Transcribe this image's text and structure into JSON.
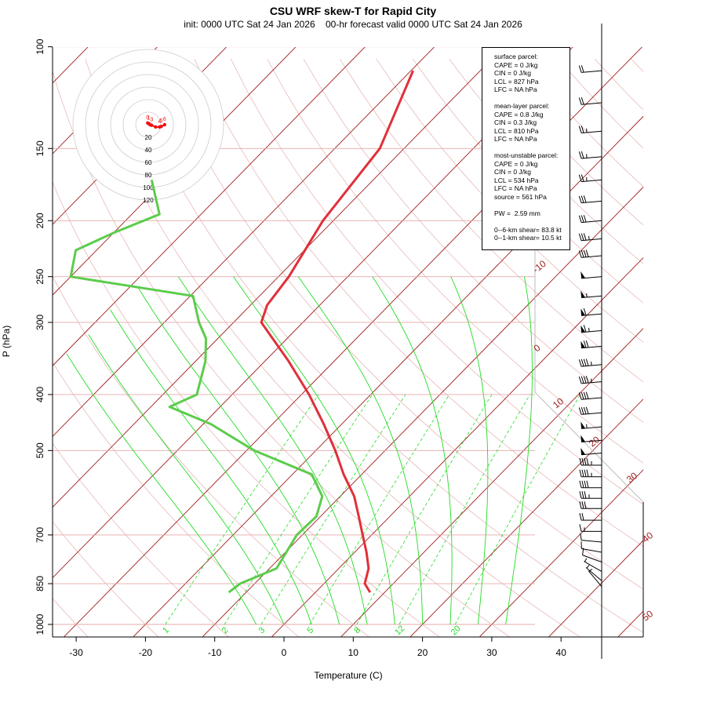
{
  "chart_data": {
    "type": "skew-t",
    "title": "CSU WRF skew-T for Rapid City",
    "subtitle": "init: 0000 UTC Sat 24 Jan 2026    00-hr forecast valid 0000 UTC Sat 24 Jan 2026",
    "xlabel": "Temperature (C)",
    "ylabel": "P (hPa)",
    "x_ticks": [
      -30,
      -20,
      -10,
      0,
      10,
      20,
      30,
      40
    ],
    "y_ticks": [
      100,
      150,
      200,
      250,
      300,
      400,
      500,
      700,
      850,
      1000
    ],
    "xlim": [
      -33,
      45
    ],
    "ylim": [
      1000,
      100
    ],
    "isotherm_labels": [
      "-10",
      "0",
      "10",
      "20",
      "30",
      "40",
      "50"
    ],
    "mixing_ratio_labels": [
      "1",
      "2",
      "3",
      "5",
      "8",
      "12",
      "20"
    ],
    "colors": {
      "temperature": "#e0303a",
      "dewpoint": "#5ccc4c",
      "isotherm": "#a01c1c",
      "dry_adiabat": "#e8b8b8",
      "moist_adiabat": "#22dd22",
      "mixing_ratio": "#22dd22",
      "hodograph": "#ee1111"
    },
    "series": [
      {
        "name": "temperature",
        "points": [
          {
            "p": 880,
            "t": 7.9
          },
          {
            "p": 850,
            "t": 5.9
          },
          {
            "p": 800,
            "t": 4.3
          },
          {
            "p": 750,
            "t": 1.7
          },
          {
            "p": 700,
            "t": -1.3
          },
          {
            "p": 650,
            "t": -4.5
          },
          {
            "p": 600,
            "t": -8.0
          },
          {
            "p": 550,
            "t": -12.6
          },
          {
            "p": 500,
            "t": -17.2
          },
          {
            "p": 450,
            "t": -22.6
          },
          {
            "p": 400,
            "t": -28.9
          },
          {
            "p": 350,
            "t": -36.6
          },
          {
            "p": 300,
            "t": -46.0
          },
          {
            "p": 280,
            "t": -47.6
          },
          {
            "p": 250,
            "t": -48.5
          },
          {
            "p": 200,
            "t": -51.5
          },
          {
            "p": 150,
            "t": -53.5
          },
          {
            "p": 110,
            "t": -59.7
          }
        ]
      },
      {
        "name": "dewpoint",
        "points": [
          {
            "p": 880,
            "t": -12.5
          },
          {
            "p": 850,
            "t": -12.1
          },
          {
            "p": 800,
            "t": -9.0
          },
          {
            "p": 700,
            "t": -10.8
          },
          {
            "p": 650,
            "t": -10.6
          },
          {
            "p": 600,
            "t": -12.6
          },
          {
            "p": 550,
            "t": -17.2
          },
          {
            "p": 500,
            "t": -28.9
          },
          {
            "p": 450,
            "t": -38.9
          },
          {
            "p": 420,
            "t": -47.3
          },
          {
            "p": 400,
            "t": -45.1
          },
          {
            "p": 350,
            "t": -48.6
          },
          {
            "p": 320,
            "t": -51.7
          },
          {
            "p": 300,
            "t": -55.0
          },
          {
            "p": 270,
            "t": -59.6
          },
          {
            "p": 250,
            "t": -80.0
          },
          {
            "p": 225,
            "t": -83.0
          },
          {
            "p": 210,
            "t": -80.0
          },
          {
            "p": 195,
            "t": -76.0
          },
          {
            "p": 170,
            "t": -82.0
          }
        ]
      }
    ],
    "hodograph": {
      "rings": [
        "20",
        "40",
        "60",
        "80",
        "100",
        "120"
      ],
      "point_labels": [
        "0",
        "1",
        "3",
        "4",
        "5",
        "6"
      ],
      "points": [
        {
          "u": -1,
          "v": 3
        },
        {
          "u": 1,
          "v": 2
        },
        {
          "u": 3,
          "v": 0
        },
        {
          "u": 6,
          "v": -1
        },
        {
          "u": 13,
          "v": -4
        },
        {
          "u": 20,
          "v": -4
        },
        {
          "u": 23,
          "v": -3
        },
        {
          "u": 29,
          "v": 0
        }
      ]
    },
    "info_box": [
      "surface parcel:",
      "CAPE = 0 J/kg",
      "CIN = 0 J/kg",
      "LCL = 827 hPa",
      "LFC = NA hPa",
      "",
      "mean-layer parcel:",
      "CAPE = 0.8 J/kg",
      "CIN = 0.3 J/kg",
      "LCL = 810 hPa",
      "LFC = NA hPa",
      "",
      "most-unstable parcel:",
      "CAPE = 0 J/kg",
      "CIN = 0 J/kg",
      "LCL = 534 hPa",
      "LFC = NA hPa",
      "source = 561 hPa",
      "",
      "PW =  2.59 mm",
      "",
      "0--6-km shear= 83.8 kt",
      "0--1-km shear= 10.5 kt"
    ],
    "wind_barbs": [
      {
        "p": 110,
        "kt": 20,
        "dir": 265
      },
      {
        "p": 125,
        "kt": 20,
        "dir": 265
      },
      {
        "p": 140,
        "kt": 25,
        "dir": 265
      },
      {
        "p": 155,
        "kt": 25,
        "dir": 265
      },
      {
        "p": 170,
        "kt": 25,
        "dir": 265
      },
      {
        "p": 185,
        "kt": 30,
        "dir": 265
      },
      {
        "p": 200,
        "kt": 30,
        "dir": 265
      },
      {
        "p": 215,
        "kt": 35,
        "dir": 265
      },
      {
        "p": 230,
        "kt": 40,
        "dir": 265
      },
      {
        "p": 250,
        "kt": 50,
        "dir": 265
      },
      {
        "p": 270,
        "kt": 55,
        "dir": 265
      },
      {
        "p": 290,
        "kt": 60,
        "dir": 265
      },
      {
        "p": 310,
        "kt": 65,
        "dir": 265
      },
      {
        "p": 330,
        "kt": 70,
        "dir": 265
      },
      {
        "p": 355,
        "kt": 45,
        "dir": 265
      },
      {
        "p": 380,
        "kt": 45,
        "dir": 265
      },
      {
        "p": 405,
        "kt": 40,
        "dir": 265
      },
      {
        "p": 430,
        "kt": 40,
        "dir": 265
      },
      {
        "p": 455,
        "kt": 55,
        "dir": 265
      },
      {
        "p": 480,
        "kt": 50,
        "dir": 265
      },
      {
        "p": 505,
        "kt": 50,
        "dir": 265
      },
      {
        "p": 530,
        "kt": 45,
        "dir": 270
      },
      {
        "p": 555,
        "kt": 45,
        "dir": 270
      },
      {
        "p": 580,
        "kt": 40,
        "dir": 270
      },
      {
        "p": 605,
        "kt": 35,
        "dir": 270
      },
      {
        "p": 630,
        "kt": 30,
        "dir": 270
      },
      {
        "p": 660,
        "kt": 20,
        "dir": 270
      },
      {
        "p": 690,
        "kt": 15,
        "dir": 270
      },
      {
        "p": 720,
        "kt": 10,
        "dir": 275
      },
      {
        "p": 750,
        "kt": 10,
        "dir": 280
      },
      {
        "p": 780,
        "kt": 10,
        "dir": 290
      },
      {
        "p": 810,
        "kt": 5,
        "dir": 300
      },
      {
        "p": 840,
        "kt": 5,
        "dir": 310
      },
      {
        "p": 860,
        "kt": 5,
        "dir": 320
      }
    ]
  }
}
